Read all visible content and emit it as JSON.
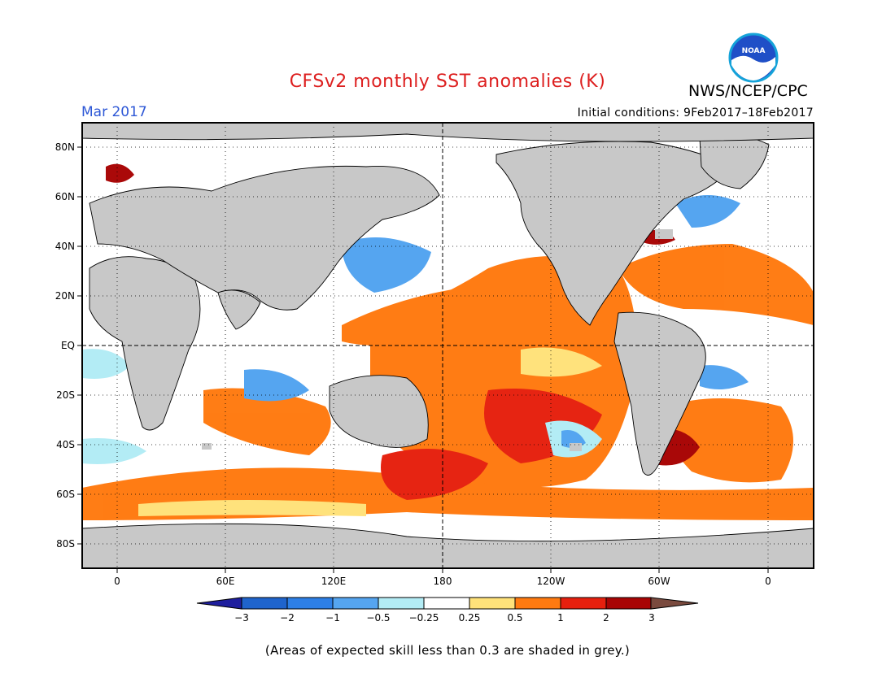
{
  "title": "CFSv2 monthly SST anomalies (K)",
  "agency": "NWS/NCEP/CPC",
  "logo_text": "NOAA",
  "forecast_month": "Mar 2017",
  "initial_conditions": "Initial conditions: 9Feb2017–18Feb2017",
  "footnote": "(Areas of expected skill less than 0.3 are shaded in grey.)",
  "map": {
    "lat_ticks": [
      "80N",
      "60N",
      "40N",
      "20N",
      "EQ",
      "20S",
      "40S",
      "60S",
      "80S"
    ],
    "lon_ticks": [
      "0",
      "60E",
      "120E",
      "180",
      "120W",
      "60W",
      "0"
    ],
    "ocean_color": "#ffffff",
    "land_color": "#c8c8c8",
    "coast_color": "#000000"
  },
  "colorbar": {
    "labels": [
      "−3",
      "−2",
      "−1",
      "−0.5",
      "−0.25",
      "0.25",
      "0.5",
      "1",
      "2",
      "3"
    ],
    "bins": [
      {
        "color": "#1e1e9e"
      },
      {
        "color": "#1f64cc"
      },
      {
        "color": "#2d7fe6"
      },
      {
        "color": "#55a5f0"
      },
      {
        "color": "#b3ecf5"
      },
      {
        "color": "#ffffff"
      },
      {
        "color": "#ffe27a"
      },
      {
        "color": "#ff7a10"
      },
      {
        "color": "#e6200e"
      },
      {
        "color": "#a80404"
      },
      {
        "color": "#7a4a3e"
      }
    ]
  }
}
